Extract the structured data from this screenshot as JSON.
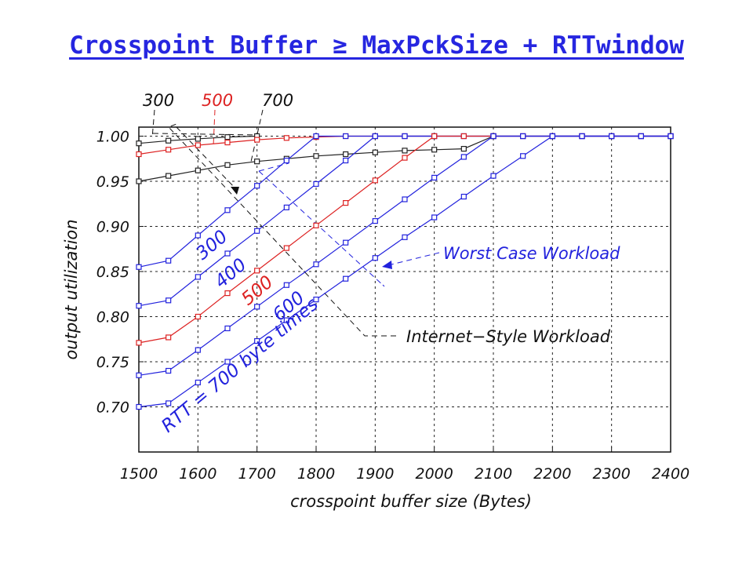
{
  "slide": {
    "title": "Crosspoint Buffer ≥ MaxPckSize + RTTwindow"
  },
  "chart_data": {
    "type": "line",
    "xlabel": "crosspoint buffer size (Bytes)",
    "ylabel": "output utilization",
    "xlim": [
      1500,
      2400
    ],
    "ylim": [
      0.65,
      1.01
    ],
    "x_ticks": [
      1500,
      1600,
      1700,
      1800,
      1900,
      2000,
      2100,
      2200,
      2300,
      2400
    ],
    "y_ticks": [
      0.7,
      0.75,
      0.8,
      0.85,
      0.9,
      0.95,
      1.0
    ],
    "grid": true,
    "x": [
      1500,
      1550,
      1600,
      1650,
      1700,
      1750,
      1800,
      1850,
      1900,
      1950,
      2000,
      2050,
      2100,
      2150,
      2200,
      2250,
      2300,
      2350,
      2400
    ],
    "worst_case_series": [
      {
        "label": "300",
        "color": "#2222dd",
        "values": [
          0.855,
          0.862,
          0.89,
          0.918,
          0.945,
          0.973,
          1.0,
          1.0,
          1.0,
          1.0,
          1.0,
          1.0,
          1.0,
          1.0,
          1.0,
          1.0,
          1.0,
          1.0,
          1.0
        ]
      },
      {
        "label": "400",
        "color": "#2222dd",
        "values": [
          0.812,
          0.818,
          0.844,
          0.87,
          0.895,
          0.921,
          0.947,
          0.973,
          1.0,
          1.0,
          1.0,
          1.0,
          1.0,
          1.0,
          1.0,
          1.0,
          1.0,
          1.0,
          1.0
        ]
      },
      {
        "label": "500",
        "color": "#dd2222",
        "values": [
          0.771,
          0.777,
          0.8,
          0.826,
          0.851,
          0.876,
          0.901,
          0.926,
          0.951,
          0.976,
          1.0,
          1.0,
          1.0,
          1.0,
          1.0,
          1.0,
          1.0,
          1.0,
          1.0
        ]
      },
      {
        "label": "600",
        "color": "#2222dd",
        "values": [
          0.735,
          0.74,
          0.763,
          0.787,
          0.811,
          0.835,
          0.858,
          0.882,
          0.906,
          0.93,
          0.954,
          0.977,
          1.0,
          1.0,
          1.0,
          1.0,
          1.0,
          1.0,
          1.0
        ]
      },
      {
        "label": "RTT = 700 byte times",
        "color": "#2222dd",
        "values": [
          0.7,
          0.704,
          0.727,
          0.75,
          0.773,
          0.796,
          0.819,
          0.842,
          0.865,
          0.888,
          0.91,
          0.933,
          0.956,
          0.978,
          1.0,
          1.0,
          1.0,
          1.0,
          1.0
        ]
      }
    ],
    "internet_style_series": [
      {
        "label": "300",
        "color": "#222222",
        "x": [
          1500,
          1550,
          1600,
          1650,
          1700
        ],
        "values": [
          0.992,
          0.995,
          0.997,
          0.999,
          1.0
        ]
      },
      {
        "label": "500",
        "color": "#dd2222",
        "x": [
          1500,
          1550,
          1600,
          1650,
          1700,
          1750,
          1800,
          1850,
          1900,
          1950,
          2000
        ],
        "values": [
          0.98,
          0.985,
          0.99,
          0.993,
          0.996,
          0.998,
          0.999,
          1.0,
          1.0,
          1.0,
          1.0
        ]
      },
      {
        "label": "700",
        "color": "#222222",
        "x": [
          1500,
          1550,
          1600,
          1650,
          1700,
          1750,
          1800,
          1850,
          1900,
          1950,
          2000,
          2050,
          2100
        ],
        "values": [
          0.95,
          0.956,
          0.962,
          0.968,
          0.972,
          0.975,
          0.978,
          0.98,
          0.982,
          0.984,
          0.985,
          0.986,
          1.0
        ]
      }
    ],
    "annotations": {
      "worst_case": "Worst Case Workload",
      "internet_style": "Internet−Style Workload",
      "top_labels": [
        "300",
        "500",
        "700"
      ]
    }
  }
}
